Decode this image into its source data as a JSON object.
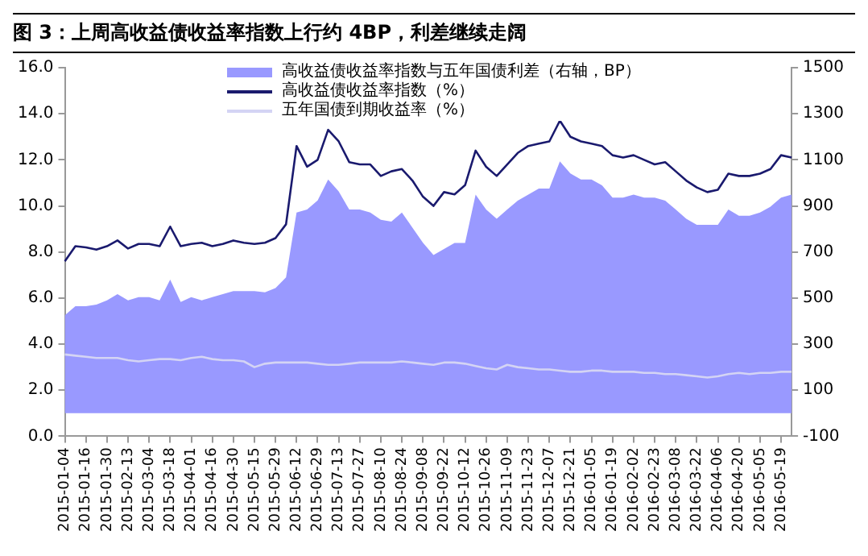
{
  "chart_data": {
    "type": "line",
    "title": "图 3：上周高收益债收益率指数上行约 4BP，利差继续走阔",
    "categories": [
      "2015-01-04",
      null,
      "2015-01-16",
      null,
      "2015-01-30",
      null,
      "2015-02-13",
      null,
      "2015-03-04",
      null,
      "2015-03-18",
      null,
      "2015-04-01",
      null,
      "2015-04-16",
      null,
      "2015-04-30",
      null,
      "2015-05-15",
      null,
      "2015-05-29",
      null,
      "2015-06-12",
      null,
      "2015-06-29",
      null,
      "2015-07-13",
      null,
      "2015-07-27",
      null,
      "2015-08-10",
      null,
      "2015-08-24",
      null,
      "2015-09-08",
      null,
      "2015-09-22",
      null,
      "2015-10-12",
      null,
      "2015-10-26",
      null,
      "2015-11-09",
      null,
      "2015-11-23",
      null,
      "2015-12-07",
      null,
      "2015-12-21",
      null,
      "2016-01-05",
      null,
      "2016-01-19",
      null,
      "2016-02-02",
      null,
      "2016-02-23",
      null,
      "2016-03-08",
      null,
      "2016-03-22",
      null,
      "2016-04-06",
      null,
      "2016-04-20",
      null,
      "2016-05-05",
      null,
      "2016-05-19",
      null
    ],
    "series": [
      {
        "name": "高收益债收益率指数与五年国债利差（右轴，BP）",
        "type": "area",
        "axis": "y2",
        "color": "#9999ff",
        "values": [
          425,
          465,
          465,
          472,
          490,
          517,
          490,
          504,
          504,
          490,
          580,
          483,
          504,
          490,
          504,
          517,
          530,
          530,
          530,
          525,
          543,
          590,
          871,
          884,
          924,
          1015,
          963,
          884,
          884,
          871,
          840,
          832,
          871,
          806,
          740,
          687,
          713,
          739,
          739,
          949,
          884,
          844,
          884,
          923,
          949,
          975,
          975,
          1093,
          1041,
          1015,
          1015,
          989,
          936,
          936,
          949,
          936,
          936,
          923,
          884,
          844,
          818,
          818,
          818,
          884,
          857,
          857,
          871,
          897,
          936,
          949
        ]
      },
      {
        "name": "高收益债收益率指数（%）",
        "type": "line",
        "color": "#1a1a6e",
        "values": [
          7.6,
          8.25,
          8.2,
          8.1,
          8.25,
          8.5,
          8.15,
          8.35,
          8.35,
          8.25,
          9.1,
          8.25,
          8.35,
          8.4,
          8.25,
          8.35,
          8.5,
          8.4,
          8.35,
          8.4,
          8.6,
          9.2,
          12.6,
          11.7,
          12.0,
          13.3,
          12.8,
          11.9,
          11.8,
          11.8,
          11.3,
          11.5,
          11.6,
          11.1,
          10.4,
          10.0,
          10.6,
          10.5,
          10.9,
          12.4,
          11.7,
          11.3,
          11.8,
          12.3,
          12.6,
          12.7,
          12.8,
          13.7,
          13.0,
          12.8,
          12.7,
          12.6,
          12.2,
          12.1,
          12.2,
          12.0,
          11.8,
          11.9,
          11.5,
          11.1,
          10.8,
          10.6,
          10.7,
          11.4,
          11.3,
          11.3,
          11.4,
          11.6,
          12.2,
          12.1
        ]
      },
      {
        "name": "五年国债到期收益率（%）",
        "type": "line",
        "color": "#d4d4f4",
        "values": [
          3.55,
          3.5,
          3.45,
          3.4,
          3.4,
          3.4,
          3.3,
          3.25,
          3.3,
          3.35,
          3.35,
          3.3,
          3.4,
          3.45,
          3.35,
          3.3,
          3.3,
          3.25,
          3.0,
          3.15,
          3.2,
          3.2,
          3.2,
          3.2,
          3.15,
          3.1,
          3.1,
          3.15,
          3.2,
          3.2,
          3.2,
          3.2,
          3.25,
          3.2,
          3.15,
          3.1,
          3.2,
          3.2,
          3.15,
          3.05,
          2.95,
          2.9,
          3.1,
          3.0,
          2.95,
          2.9,
          2.9,
          2.85,
          2.8,
          2.8,
          2.85,
          2.85,
          2.8,
          2.8,
          2.8,
          2.75,
          2.75,
          2.7,
          2.7,
          2.65,
          2.6,
          2.55,
          2.6,
          2.7,
          2.75,
          2.7,
          2.75,
          2.75,
          2.8,
          2.8
        ]
      }
    ],
    "ylim": [
      0,
      16
    ],
    "yticks": [
      {
        "value": 0,
        "label": "0.0"
      },
      {
        "value": 2,
        "label": "2.0"
      },
      {
        "value": 4,
        "label": "4.0"
      },
      {
        "value": 6,
        "label": "6.0"
      },
      {
        "value": 8,
        "label": "8.0"
      },
      {
        "value": 10,
        "label": "10.0"
      },
      {
        "value": 12,
        "label": "12.0"
      },
      {
        "value": 14,
        "label": "14.0"
      },
      {
        "value": 16,
        "label": "16.0"
      }
    ],
    "y2lim": [
      -100,
      1500
    ],
    "y2ticks": [
      -100,
      100,
      300,
      500,
      700,
      900,
      1100,
      1300,
      1500
    ],
    "grid": false,
    "legend": "top",
    "marker": "none",
    "line_style": "solid"
  }
}
